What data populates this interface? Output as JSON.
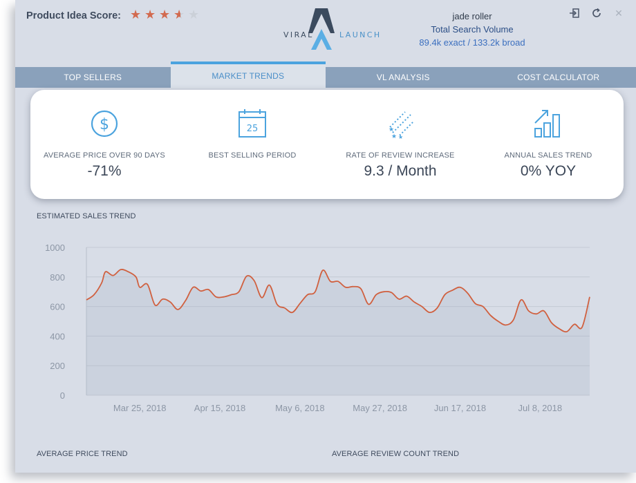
{
  "header": {
    "score_label": "Product Idea Score:",
    "rating": 3.5,
    "rating_max": 5,
    "logo_left": "VIRAL",
    "logo_right": "LAUNCH",
    "keyword": "jade roller",
    "volume_title": "Total Search Volume",
    "volume_value": "89.4k exact / 133.2k broad",
    "icons": [
      "sign-in-icon",
      "refresh-icon",
      "close-icon"
    ],
    "close_glyph": "✕"
  },
  "tabs": [
    {
      "label": "TOP SELLERS",
      "active": false
    },
    {
      "label": "MARKET TRENDS",
      "active": true
    },
    {
      "label": "VL ANALYSIS",
      "active": false
    },
    {
      "label": "COST CALCULATOR",
      "active": false
    }
  ],
  "stats": [
    {
      "icon": "dollar-circle-icon",
      "label": "AVERAGE PRICE OVER 90 DAYS",
      "value": "-71%"
    },
    {
      "icon": "calendar-icon",
      "label": "BEST SELLING PERIOD",
      "value": "",
      "calendar_day": "25"
    },
    {
      "icon": "shooting-stars-icon",
      "label": "RATE OF REVIEW INCREASE",
      "value": "9.3 / Month"
    },
    {
      "icon": "growth-chart-icon",
      "label": "ANNUAL SALES TREND",
      "value": "0% YOY"
    }
  ],
  "sections": {
    "sales_trend": "ESTIMATED SALES TREND",
    "price_trend": "AVERAGE PRICE TREND",
    "review_trend": "AVERAGE REVIEW COUNT TREND"
  },
  "colors": {
    "accent": "#4ba3de",
    "star": "#d26a4f",
    "line": "#d0603f",
    "tab_bar": "#8aa1bb"
  },
  "chart_data": {
    "type": "area",
    "title": "ESTIMATED SALES TREND",
    "xlabel": "",
    "ylabel": "",
    "ylim": [
      0,
      1000
    ],
    "y_ticks": [
      0,
      200,
      400,
      600,
      800,
      1000
    ],
    "x_range": [
      "2018-03-11",
      "2018-07-21"
    ],
    "x_ticks": [
      {
        "date": "2018-03-25",
        "label": "Mar 25, 2018"
      },
      {
        "date": "2018-04-15",
        "label": "Apr 15, 2018"
      },
      {
        "date": "2018-05-06",
        "label": "May 6, 2018"
      },
      {
        "date": "2018-05-27",
        "label": "May 27, 2018"
      },
      {
        "date": "2018-06-17",
        "label": "Jun 17, 2018"
      },
      {
        "date": "2018-07-08",
        "label": "Jul 8, 2018"
      }
    ],
    "grid": true,
    "series": [
      {
        "values": [
          [
            "2018-03-11",
            645
          ],
          [
            "2018-03-13",
            680
          ],
          [
            "2018-03-15",
            760
          ],
          [
            "2018-03-16",
            835
          ],
          [
            "2018-03-18",
            810
          ],
          [
            "2018-03-20",
            850
          ],
          [
            "2018-03-22",
            835
          ],
          [
            "2018-03-24",
            800
          ],
          [
            "2018-03-25",
            730
          ],
          [
            "2018-03-27",
            750
          ],
          [
            "2018-03-29",
            610
          ],
          [
            "2018-03-31",
            650
          ],
          [
            "2018-04-02",
            630
          ],
          [
            "2018-04-04",
            580
          ],
          [
            "2018-04-06",
            640
          ],
          [
            "2018-04-08",
            730
          ],
          [
            "2018-04-10",
            705
          ],
          [
            "2018-04-12",
            715
          ],
          [
            "2018-04-14",
            665
          ],
          [
            "2018-04-16",
            665
          ],
          [
            "2018-04-18",
            680
          ],
          [
            "2018-04-20",
            700
          ],
          [
            "2018-04-22",
            805
          ],
          [
            "2018-04-24",
            775
          ],
          [
            "2018-04-26",
            660
          ],
          [
            "2018-04-28",
            745
          ],
          [
            "2018-04-30",
            615
          ],
          [
            "2018-05-02",
            590
          ],
          [
            "2018-05-04",
            560
          ],
          [
            "2018-05-06",
            620
          ],
          [
            "2018-05-08",
            680
          ],
          [
            "2018-05-10",
            700
          ],
          [
            "2018-05-12",
            845
          ],
          [
            "2018-05-14",
            770
          ],
          [
            "2018-05-16",
            770
          ],
          [
            "2018-05-18",
            730
          ],
          [
            "2018-05-20",
            735
          ],
          [
            "2018-05-22",
            720
          ],
          [
            "2018-05-24",
            615
          ],
          [
            "2018-05-26",
            680
          ],
          [
            "2018-05-28",
            700
          ],
          [
            "2018-05-30",
            695
          ],
          [
            "2018-06-01",
            650
          ],
          [
            "2018-06-03",
            670
          ],
          [
            "2018-06-05",
            630
          ],
          [
            "2018-06-07",
            600
          ],
          [
            "2018-06-09",
            560
          ],
          [
            "2018-06-11",
            590
          ],
          [
            "2018-06-13",
            680
          ],
          [
            "2018-06-15",
            710
          ],
          [
            "2018-06-17",
            730
          ],
          [
            "2018-06-19",
            690
          ],
          [
            "2018-06-21",
            620
          ],
          [
            "2018-06-23",
            600
          ],
          [
            "2018-06-25",
            540
          ],
          [
            "2018-06-27",
            500
          ],
          [
            "2018-06-29",
            475
          ],
          [
            "2018-07-01",
            510
          ],
          [
            "2018-07-03",
            645
          ],
          [
            "2018-07-05",
            570
          ],
          [
            "2018-07-07",
            550
          ],
          [
            "2018-07-09",
            570
          ],
          [
            "2018-07-11",
            490
          ],
          [
            "2018-07-13",
            450
          ],
          [
            "2018-07-15",
            430
          ],
          [
            "2018-07-17",
            480
          ],
          [
            "2018-07-19",
            460
          ],
          [
            "2018-07-21",
            665
          ]
        ]
      }
    ]
  }
}
